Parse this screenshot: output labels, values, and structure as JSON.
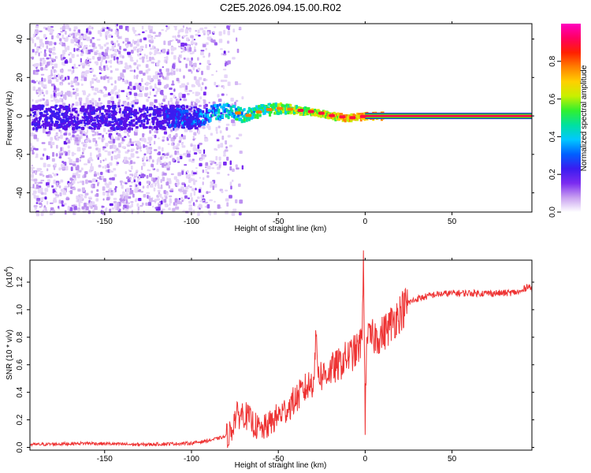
{
  "title": "C2E5.2026.094.15.00.R02",
  "chart_data": [
    {
      "type": "heatmap",
      "xlabel": "Height of straight line (km)",
      "ylabel": "Frequency (Hz)",
      "xlim": [
        -193,
        96
      ],
      "ylim": [
        -50,
        48
      ],
      "xticks": [
        -150,
        -100,
        -50,
        0,
        50
      ],
      "yticks": [
        -40,
        -20,
        0,
        20,
        40
      ],
      "colorbar": {
        "label": "Normalized spectral amplitude",
        "range": [
          0,
          1
        ],
        "ticks": [
          "0.0",
          "0.2",
          "0.4",
          "0.6",
          "0.8"
        ],
        "tick_values": [
          0.0,
          0.2,
          0.4,
          0.6,
          0.8
        ],
        "colormap": [
          "#ffffff",
          "#c8a0f0",
          "#7b2bf0",
          "#3a1cf0",
          "#0060ff",
          "#00c8ff",
          "#00e0a0",
          "#30f030",
          "#c8f000",
          "#ffd000",
          "#ff8000",
          "#ff2000",
          "#ff0060",
          "#ff00c0"
        ]
      },
      "ridge_center_hz": [
        [
          -120,
          0
        ],
        [
          -100,
          -2
        ],
        [
          -90,
          1
        ],
        [
          -80,
          3
        ],
        [
          -70,
          0
        ],
        [
          -60,
          3
        ],
        [
          -50,
          4
        ],
        [
          -40,
          3
        ],
        [
          -30,
          2
        ],
        [
          -20,
          0
        ],
        [
          -10,
          -1
        ],
        [
          0,
          0
        ],
        [
          96,
          0
        ]
      ]
    },
    {
      "type": "line",
      "xlabel": "Height of straight line (km)",
      "ylabel": "SNR (10 * v/v)",
      "y_scale_label": "(x10",
      "y_scale_exp": "4",
      "y_scale_close": ")",
      "xlim": [
        -193,
        96
      ],
      "ylim": [
        -0.02,
        1.36
      ],
      "xticks": [
        -150,
        -100,
        -50,
        0,
        50
      ],
      "yticks": [
        "0.0",
        "0.2",
        "0.4",
        "0.6",
        "0.8",
        "1.0",
        "1.2"
      ],
      "ytick_values": [
        0.0,
        0.2,
        0.4,
        0.6,
        0.8,
        1.0,
        1.2
      ],
      "line_color": "#ee3333",
      "series": [
        {
          "name": "SNR",
          "x": [
            -193,
            -160,
            -130,
            -100,
            -90,
            -80,
            -77,
            -75,
            -70,
            -65,
            -60,
            -55,
            -50,
            -45,
            -40,
            -35,
            -30,
            -28,
            -27,
            -25,
            -20,
            -15,
            -10,
            -5,
            -2,
            -1,
            0,
            1,
            2,
            5,
            10,
            15,
            20,
            25,
            30,
            40,
            50,
            60,
            70,
            80,
            90,
            94,
            96
          ],
          "y": [
            0.02,
            0.03,
            0.02,
            0.03,
            0.05,
            0.08,
            0.12,
            0.22,
            0.25,
            0.18,
            0.12,
            0.17,
            0.23,
            0.28,
            0.35,
            0.42,
            0.48,
            0.8,
            0.55,
            0.52,
            0.56,
            0.6,
            0.66,
            0.7,
            0.76,
            1.36,
            0.18,
            0.9,
            0.78,
            0.8,
            0.82,
            0.9,
            0.98,
            1.05,
            1.08,
            1.11,
            1.12,
            1.12,
            1.12,
            1.12,
            1.13,
            1.18,
            1.14
          ]
        }
      ]
    }
  ]
}
